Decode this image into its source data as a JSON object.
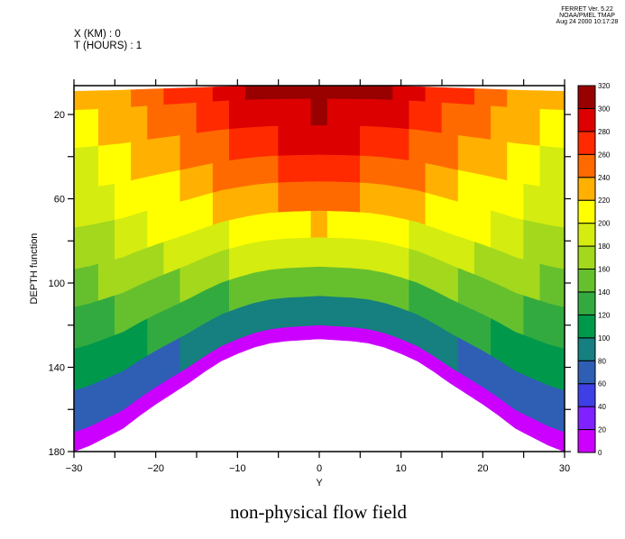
{
  "header": {
    "version": "FERRET Ver. 5.22",
    "org": "NOAA/PMEL TMAP",
    "date": "Aug 24 2000 10:17:28",
    "context": [
      "X (KM) : 0",
      "T (HOURS) : 1"
    ]
  },
  "chart_data": {
    "type": "heatmap",
    "title": "non-physical flow field",
    "xlabel": "Y",
    "ylabel": "DEPTH function",
    "xlim": [
      -30,
      30
    ],
    "ylim": [
      180,
      6.3
    ],
    "y_axis_reversed": true,
    "grid": false,
    "x_ticks": [
      -30,
      -20,
      -10,
      0,
      10,
      20,
      30
    ],
    "x_minor_ticks": [
      -25,
      -15,
      -5,
      5,
      15,
      25
    ],
    "y_ticks": [
      20,
      60,
      100,
      140,
      180
    ],
    "y_minor_ticks": [
      40,
      80,
      120,
      160
    ],
    "x": [
      -30,
      -28,
      -26,
      -24,
      -22,
      -20,
      -18,
      -16,
      -14,
      -12,
      -10,
      -8,
      -6,
      -4,
      -2,
      0,
      2,
      4,
      6,
      8,
      10,
      12,
      14,
      16,
      18,
      20,
      22,
      24,
      26,
      28,
      30
    ],
    "bottom_depth": [
      180,
      177,
      173,
      169,
      163,
      157.5,
      152.5,
      147.5,
      142,
      137,
      133.5,
      130.5,
      128.5,
      127.5,
      127,
      126.5,
      127,
      127.5,
      128.5,
      130.5,
      133.5,
      137,
      142,
      147.5,
      152.5,
      157.5,
      163,
      169,
      173,
      177,
      180
    ],
    "sigma_edges": [
      0.05,
      0.1,
      0.2,
      0.31,
      0.41,
      0.52,
      0.62,
      0.73,
      0.84,
      0.95,
      1.0
    ],
    "values": [
      [
        230,
        230,
        230,
        230,
        250,
        250,
        270,
        270,
        270,
        290,
        290,
        310,
        310,
        310,
        310,
        310,
        310,
        310,
        310,
        310,
        290,
        290,
        270,
        270,
        270,
        250,
        250,
        230,
        230,
        230,
        230
      ],
      [
        210,
        210,
        230,
        230,
        230,
        250,
        250,
        250,
        270,
        270,
        290,
        290,
        290,
        290,
        290,
        310,
        290,
        290,
        290,
        290,
        290,
        270,
        270,
        250,
        250,
        250,
        230,
        230,
        230,
        210,
        210
      ],
      [
        190,
        190,
        210,
        210,
        230,
        230,
        230,
        250,
        250,
        250,
        270,
        270,
        270,
        290,
        290,
        290,
        290,
        290,
        270,
        270,
        270,
        250,
        250,
        250,
        230,
        230,
        230,
        210,
        210,
        190,
        190
      ],
      [
        190,
        190,
        190,
        210,
        210,
        210,
        210,
        230,
        230,
        250,
        250,
        250,
        250,
        270,
        270,
        270,
        270,
        270,
        250,
        250,
        250,
        250,
        230,
        230,
        210,
        210,
        210,
        210,
        190,
        190,
        190
      ],
      [
        170,
        170,
        170,
        190,
        190,
        210,
        210,
        210,
        210,
        230,
        230,
        230,
        230,
        250,
        250,
        250,
        250,
        250,
        230,
        230,
        230,
        230,
        210,
        210,
        210,
        210,
        190,
        190,
        170,
        170,
        170
      ],
      [
        150,
        150,
        170,
        170,
        170,
        170,
        190,
        190,
        190,
        190,
        210,
        210,
        210,
        210,
        210,
        230,
        210,
        210,
        210,
        210,
        210,
        190,
        190,
        190,
        190,
        170,
        170,
        170,
        170,
        150,
        150
      ],
      [
        130,
        130,
        130,
        150,
        150,
        150,
        150,
        170,
        170,
        170,
        190,
        190,
        190,
        190,
        190,
        190,
        190,
        190,
        190,
        190,
        190,
        170,
        170,
        170,
        150,
        150,
        150,
        150,
        130,
        130,
        130
      ],
      [
        110,
        110,
        110,
        110,
        110,
        130,
        130,
        130,
        130,
        130,
        150,
        150,
        150,
        150,
        150,
        150,
        150,
        150,
        150,
        150,
        150,
        130,
        130,
        130,
        130,
        130,
        110,
        110,
        110,
        110,
        110
      ],
      [
        70,
        70,
        70,
        70,
        70,
        70,
        70,
        90,
        90,
        90,
        90,
        90,
        90,
        90,
        90,
        90,
        90,
        90,
        90,
        90,
        90,
        90,
        90,
        90,
        70,
        70,
        70,
        70,
        70,
        70,
        70
      ],
      [
        10,
        10,
        10,
        10,
        10,
        10,
        10,
        10,
        10,
        10,
        10,
        10,
        10,
        10,
        10,
        10,
        10,
        10,
        10,
        10,
        10,
        10,
        10,
        10,
        10,
        10,
        10,
        10,
        10,
        10,
        10
      ]
    ],
    "colorbar": {
      "levels": [
        0,
        20,
        40,
        60,
        80,
        100,
        120,
        140,
        160,
        180,
        200,
        220,
        240,
        260,
        280,
        300,
        320
      ],
      "colors": [
        "#cc00ff",
        "#7f22ff",
        "#3f3fe6",
        "#2e5fb5",
        "#167f7f",
        "#00994c",
        "#33aa40",
        "#66c02e",
        "#a3d81d",
        "#d4ec10",
        "#ffff00",
        "#ffb000",
        "#ff6a00",
        "#ff2a00",
        "#dd0000",
        "#990000"
      ],
      "placement": "right"
    }
  }
}
